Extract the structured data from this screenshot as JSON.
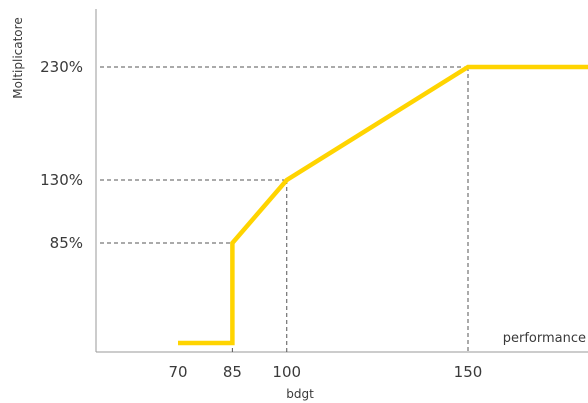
{
  "chart_data": {
    "type": "line",
    "xlabel": "bdgt",
    "ylabel": "Moltiplicatore",
    "annotation": "performance",
    "x_ticks": [
      {
        "value": 70,
        "label": "70"
      },
      {
        "value": 85,
        "label": "85"
      },
      {
        "value": 100,
        "label": "100"
      },
      {
        "value": 150,
        "label": "150"
      }
    ],
    "y_ticks": [
      {
        "value": 85,
        "label": "85%"
      },
      {
        "value": 130,
        "label": "130%"
      },
      {
        "value": 230,
        "label": "230%"
      }
    ],
    "series": [
      {
        "color": "#FFD400",
        "points": [
          [
            70,
            0
          ],
          [
            85,
            0
          ],
          [
            85,
            85
          ],
          [
            100,
            130
          ],
          [
            150,
            230
          ],
          [
            185,
            230
          ]
        ]
      }
    ],
    "reference_lines": [
      {
        "x": 85,
        "y": 85
      },
      {
        "x": 100,
        "y": 130
      },
      {
        "x": 150,
        "y": 230
      }
    ],
    "grid": false
  }
}
